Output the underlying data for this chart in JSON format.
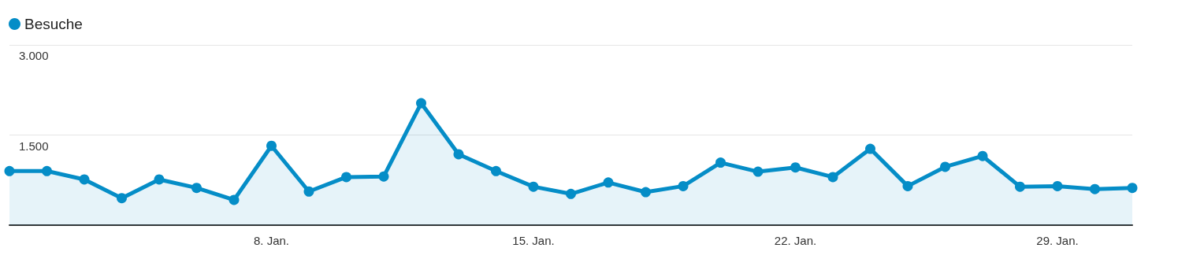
{
  "chart_data": {
    "type": "area",
    "x": [
      "--01-01",
      "--01-02",
      "--01-03",
      "--01-04",
      "--01-05",
      "--01-06",
      "--01-07",
      "--01-08",
      "--01-09",
      "--01-10",
      "--01-11",
      "--01-12",
      "--01-13",
      "--01-14",
      "--01-15",
      "--01-16",
      "--01-17",
      "--01-18",
      "--01-19",
      "--01-20",
      "--01-21",
      "--01-22",
      "--01-23",
      "--01-24",
      "--01-25",
      "--01-26",
      "--01-27",
      "--01-28",
      "--01-29",
      "--01-30",
      "--01-31"
    ],
    "series": [
      {
        "name": "Besuche",
        "color": "#058dc7",
        "values": [
          900,
          900,
          760,
          450,
          760,
          620,
          420,
          1320,
          560,
          800,
          810,
          2030,
          1180,
          900,
          640,
          520,
          710,
          550,
          650,
          1040,
          890,
          960,
          800,
          1270,
          650,
          970,
          1150,
          640,
          650,
          600,
          620
        ]
      }
    ],
    "xlim": [
      "--01-01",
      "--01-31"
    ],
    "xticks": [
      {
        "value": "--01-08",
        "label": "8. Jan."
      },
      {
        "value": "--01-15",
        "label": "15. Jan."
      },
      {
        "value": "--01-22",
        "label": "22. Jan."
      },
      {
        "value": "--01-29",
        "label": "29. Jan."
      }
    ],
    "ylim": [
      0,
      3000
    ],
    "yticks": [
      {
        "value": 1500,
        "label": "1.500"
      },
      {
        "value": 3000,
        "label": "3.000"
      }
    ],
    "grid": "y",
    "legend": "top left",
    "marker": "circle",
    "line_style": "solid"
  }
}
